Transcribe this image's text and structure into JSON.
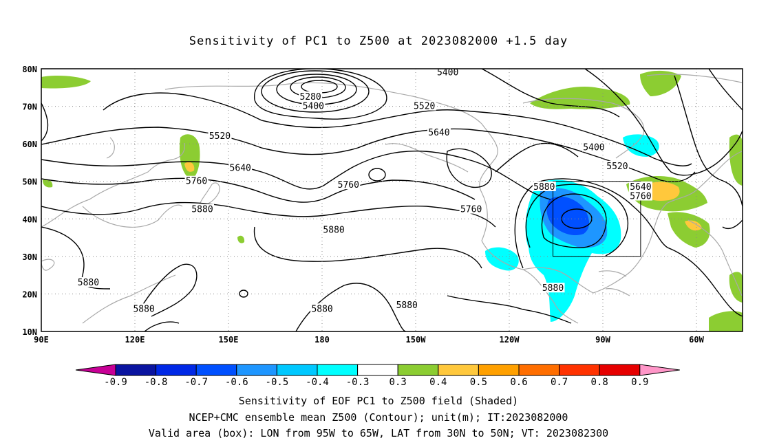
{
  "title": "Sensitivity of PC1 to Z500 at 2023082000 +1.5 day",
  "map": {
    "lon_labels": [
      "90E",
      "120E",
      "150E",
      "180",
      "150W",
      "120W",
      "90W",
      "60W"
    ],
    "lat_labels": [
      "80N",
      "70N",
      "60N",
      "50N",
      "40N",
      "30N",
      "20N",
      "10N"
    ],
    "contour_labels": [
      {
        "text": "5400",
        "lon": -131,
        "lat": 79
      },
      {
        "text": "5280",
        "lon": -178,
        "lat": 72.5
      },
      {
        "text": "5400",
        "lon": -177,
        "lat": 70
      },
      {
        "text": "5520",
        "lon": -139,
        "lat": 70
      },
      {
        "text": "5520",
        "lon": 151,
        "lat": 62
      },
      {
        "text": "5640",
        "lon": -134,
        "lat": 63
      },
      {
        "text": "5400",
        "lon": -81,
        "lat": 59
      },
      {
        "text": "5520",
        "lon": -73,
        "lat": 54
      },
      {
        "text": "5640",
        "lon": 158,
        "lat": 53.5
      },
      {
        "text": "5760",
        "lon": 143,
        "lat": 50
      },
      {
        "text": "5760",
        "lon": -165,
        "lat": 49
      },
      {
        "text": "5760",
        "lon": -123,
        "lat": 42.5
      },
      {
        "text": "5880",
        "lon": -98,
        "lat": 48.5
      },
      {
        "text": "5640",
        "lon": -65,
        "lat": 48.5
      },
      {
        "text": "5760",
        "lon": -65,
        "lat": 46
      },
      {
        "text": "5880",
        "lon": 145,
        "lat": 42.5
      },
      {
        "text": "5880",
        "lon": -170,
        "lat": 37
      },
      {
        "text": "5880",
        "lon": 106,
        "lat": 23
      },
      {
        "text": "5880",
        "lon": 125,
        "lat": 16
      },
      {
        "text": "5880",
        "lon": -174,
        "lat": 16
      },
      {
        "text": "5880",
        "lon": -145,
        "lat": 17
      },
      {
        "text": "5880",
        "lon": -95,
        "lat": 21.5
      }
    ],
    "valid_box": {
      "lon_min": -95,
      "lon_max": -65,
      "lat_min": 30,
      "lat_max": 50
    }
  },
  "colorbar": {
    "labels": [
      "-0.9",
      "-0.8",
      "-0.7",
      "-0.6",
      "-0.5",
      "-0.4",
      "-0.3",
      "0.3",
      "0.4",
      "0.5",
      "0.6",
      "0.7",
      "0.8",
      "0.9"
    ],
    "colors": [
      "#c80096",
      "#0a14a0",
      "#0028e6",
      "#0050ff",
      "#1e96ff",
      "#00c8ff",
      "#00ffff",
      "#ffffff",
      "#8ccd32",
      "#ffc83c",
      "#ffa000",
      "#ff6e00",
      "#ff3200",
      "#e60000",
      "#ff96c8"
    ]
  },
  "captions": {
    "line1": "Sensitivity of EOF PC1 to Z500 field (Shaded)",
    "line2": "NCEP+CMC ensemble mean Z500 (Contour); unit(m); IT:2023082000",
    "line3": "Valid area (box): LON from 95W to 65W, LAT from 30N to 50N; VT: 2023082300"
  }
}
